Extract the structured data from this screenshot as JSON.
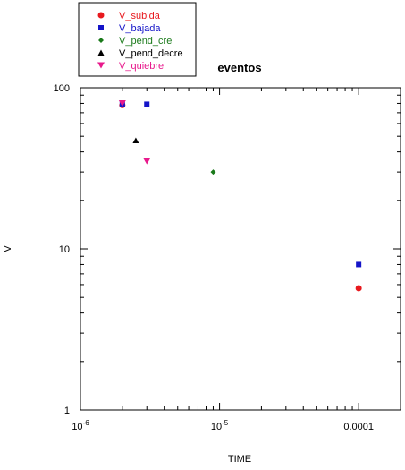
{
  "chart_data": {
    "type": "scatter",
    "title": "eventos",
    "xlabel": "TIME",
    "ylabel": "V",
    "x_scale": "log",
    "y_scale": "log",
    "xlim": [
      1e-06,
      0.0002
    ],
    "ylim": [
      1,
      100
    ],
    "x_ticks": [
      {
        "value": 1e-06,
        "base": "10",
        "exp": "-6"
      },
      {
        "value": 1e-05,
        "base": "10",
        "exp": "-5"
      },
      {
        "value": 0.0001,
        "label": "0.0001"
      }
    ],
    "y_ticks": [
      {
        "value": 1,
        "label": "1"
      },
      {
        "value": 10,
        "label": "10"
      },
      {
        "value": 100,
        "label": "100"
      }
    ],
    "grid": false,
    "legend_position": "top-left",
    "series": [
      {
        "name": "V_subida",
        "color": "#e8191e",
        "marker": "circle",
        "x": [
          2e-06,
          0.0001
        ],
        "y": [
          78,
          5.7
        ]
      },
      {
        "name": "V_bajada",
        "color": "#1414c8",
        "marker": "square",
        "x": [
          2e-06,
          3e-06,
          0.0001
        ],
        "y": [
          79,
          79,
          8
        ]
      },
      {
        "name": "V_pend_cre",
        "color": "#1a7a1a",
        "marker": "diamond",
        "x": [
          9e-06
        ],
        "y": [
          30
        ]
      },
      {
        "name": "V_pend_decre",
        "color": "#000000",
        "marker": "triangle-up",
        "x": [
          2.5e-06
        ],
        "y": [
          47
        ]
      },
      {
        "name": "V_quiebre",
        "color": "#e8198c",
        "marker": "triangle-down",
        "x": [
          2e-06,
          3e-06
        ],
        "y": [
          80,
          35
        ]
      }
    ]
  }
}
